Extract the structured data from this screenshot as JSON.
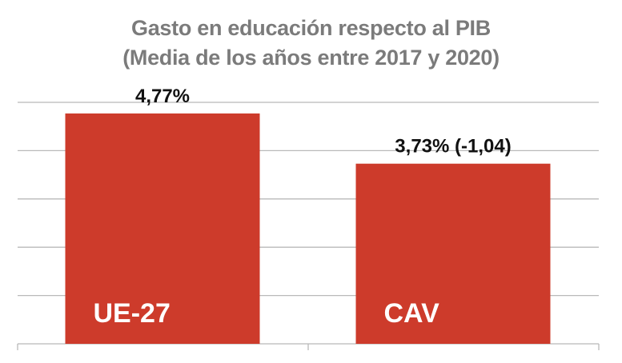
{
  "chart_data": {
    "type": "bar",
    "title": "Gasto en educación respecto al PIB",
    "subtitle": "(Media de los años entre 2017 y 2020)",
    "categories": [
      "UE-27",
      "CAV"
    ],
    "values": [
      4.77,
      3.73
    ],
    "data_labels": [
      "4,77%",
      "3,73% (-1,04)"
    ],
    "ylim": [
      0,
      5
    ],
    "xlabel": "",
    "ylabel": "",
    "grid": true,
    "legend": "none",
    "bar_color": "#cd3b2b",
    "label_color": "#ffffff"
  }
}
